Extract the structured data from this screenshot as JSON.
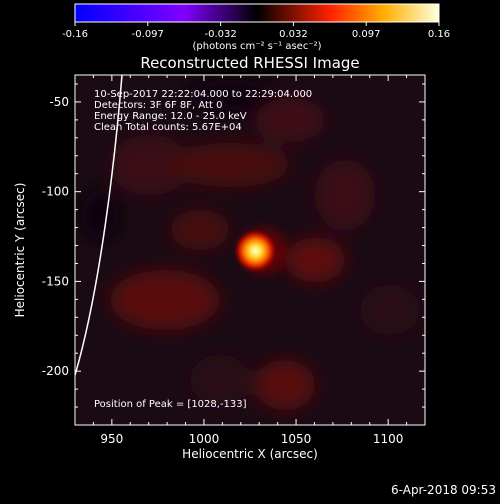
{
  "chart_data": {
    "type": "heatmap",
    "title": "Reconstructed RHESSI Image",
    "xlabel": "Heliocentric X (arcsec)",
    "ylabel": "Heliocentric Y (arcsec)",
    "xlim": [
      930,
      1120
    ],
    "ylim": [
      -230,
      -35
    ],
    "x_ticks": [
      950,
      1000,
      1050,
      1100
    ],
    "y_ticks": [
      -50,
      -100,
      -150,
      -200
    ],
    "colorbar": {
      "range": [
        -0.16,
        0.16
      ],
      "ticks": [
        "-0.16",
        "-0.097",
        "-0.032",
        "0.032",
        "0.097",
        "0.16"
      ],
      "unit_label": "(photons cm⁻² s⁻¹ asec⁻²)",
      "colormap": [
        "#0000ff",
        "#8000ff",
        "#000000",
        "#ff2000",
        "#ffb000",
        "#ffffe0"
      ]
    },
    "annotations": [
      "10-Sep-2017 22:22:04.000 to 22:29:04.000",
      "Detectors: 3F 6F 8F, Att 0",
      "Energy Range: 12.0 - 25.0 keV",
      "Clean     Total counts: 5.67E+04"
    ],
    "peak": {
      "label": "Position of Peak = [1028,-133]",
      "x": 1028,
      "y": -133
    },
    "limb_color": "#ffffff"
  },
  "footer": {
    "date": "6-Apr-2018 09:53"
  }
}
